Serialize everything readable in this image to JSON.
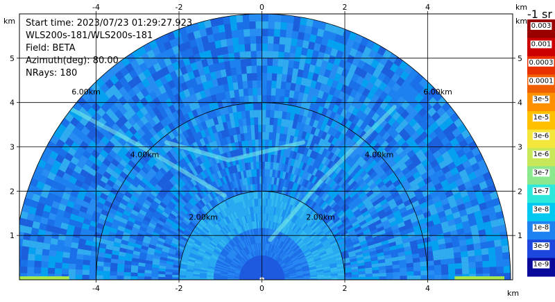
{
  "info": {
    "start_time": "Start time: 2023/07/23 01:29:27.923",
    "instrument": "WLS200s-181/WLS200s-181",
    "field": "Field: BETA",
    "azimuth": "Azimuth(deg): 80.00",
    "nrays": "NRays: 180"
  },
  "chart_data": {
    "type": "heatmap",
    "projection": "rhi-half-polar",
    "xunit": "km",
    "yunit": "km",
    "xlim": [
      -5.85,
      6.05
    ],
    "ylim": [
      0,
      6.0
    ],
    "xticks": [
      -4,
      -2,
      0,
      2,
      4
    ],
    "yticks": [
      1,
      2,
      3,
      4,
      5
    ],
    "grid": true,
    "range_rings": [
      {
        "r": 2,
        "label": "2.00km"
      },
      {
        "r": 4,
        "label": "4.00km"
      },
      {
        "r": 6,
        "label": "6.00km"
      }
    ],
    "colorbar": {
      "unit": "-1 sr",
      "ticks": [
        "0.003",
        "0.001",
        "0.0003",
        "0.0001",
        "3e-5",
        "1e-5",
        "3e-6",
        "1e-6",
        "3e-7",
        "1e-7",
        "3e-8",
        "1e-8",
        "3e-9",
        "1e-9"
      ],
      "colors": [
        "#9a0000",
        "#cc0000",
        "#e83000",
        "#f06000",
        "#ff9000",
        "#ffc000",
        "#f5e63c",
        "#c8e85a",
        "#8ce88c",
        "#2ee8dc",
        "#00c8f0",
        "#1e82f0",
        "#1c46dc",
        "#0a0a9a"
      ]
    }
  }
}
